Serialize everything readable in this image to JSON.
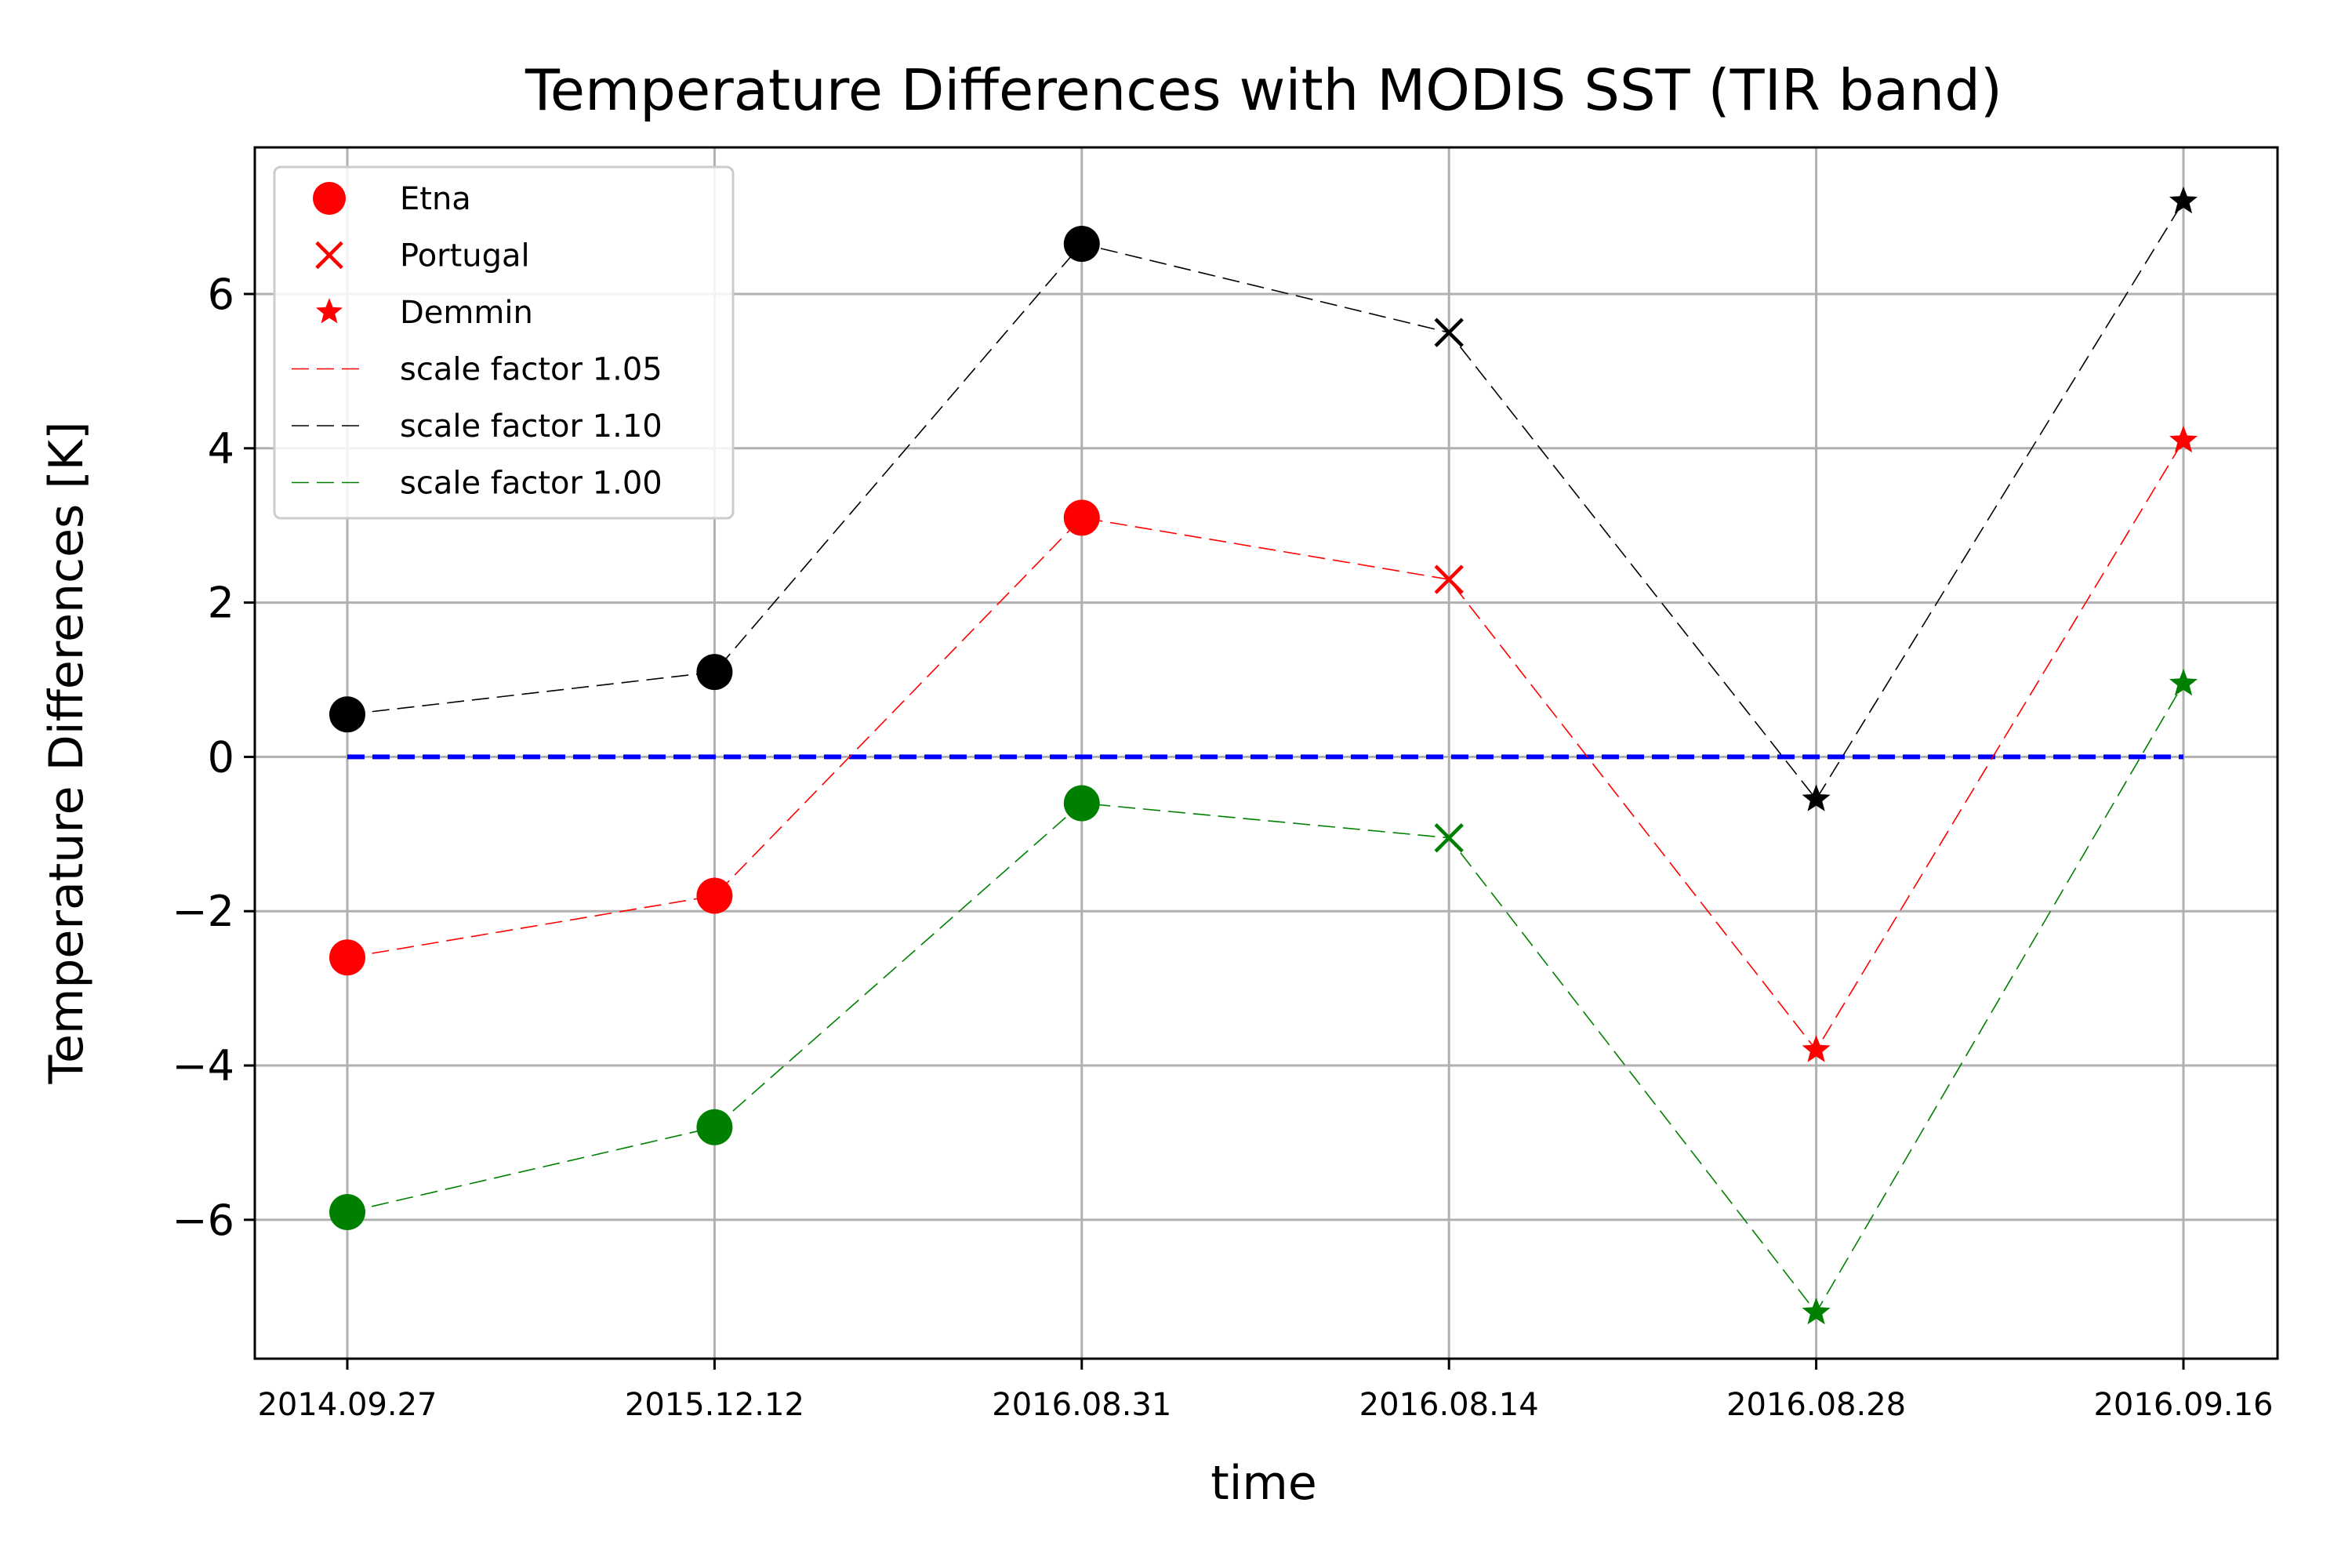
{
  "chart_data": {
    "type": "line",
    "title": "Temperature Differences with MODIS SST (TIR band)",
    "xlabel": "time",
    "ylabel": "Temperature Differences [K]",
    "categories": [
      "2014.09.27",
      "2015.12.12",
      "2016.08.31",
      "2016.08.14",
      "2016.08.28",
      "2016.09.16"
    ],
    "ylim": [
      -7.8,
      7.9
    ],
    "yticks": [
      -6,
      -4,
      -2,
      0,
      2,
      4,
      6
    ],
    "ytick_labels": [
      "−6",
      "−4",
      "−2",
      "0",
      "2",
      "4",
      "6"
    ],
    "grid": true,
    "legend_position": "top-left",
    "markers": {
      "Etna": "circle",
      "Portugal": "x",
      "Demmin": "star"
    },
    "point_sites": [
      "Etna",
      "Etna",
      "Etna",
      "Portugal",
      "Demmin",
      "Demmin"
    ],
    "series": [
      {
        "name": "scale factor 1.05",
        "color": "#ff0000",
        "values": [
          -2.6,
          -1.8,
          3.1,
          2.3,
          -3.8,
          4.1
        ]
      },
      {
        "name": "scale factor 1.10",
        "color": "#000000",
        "values": [
          0.55,
          1.1,
          6.65,
          5.5,
          -0.55,
          7.2
        ]
      },
      {
        "name": "scale factor 1.00",
        "color": "#008000",
        "values": [
          -5.9,
          -4.8,
          -0.6,
          -1.05,
          -7.2,
          0.95
        ]
      }
    ],
    "reference_line": {
      "value": 0,
      "color": "#0000ff",
      "style": "dashed"
    },
    "legend": [
      {
        "label": "Etna",
        "marker": "circle",
        "color": "#ff0000"
      },
      {
        "label": "Portugal",
        "marker": "x",
        "color": "#ff0000"
      },
      {
        "label": "Demmin",
        "marker": "star",
        "color": "#ff0000"
      },
      {
        "label": "scale factor 1.05",
        "line": "dashed",
        "color": "#ff0000"
      },
      {
        "label": "scale factor 1.10",
        "line": "dashed",
        "color": "#000000"
      },
      {
        "label": "scale factor 1.00",
        "line": "dashed",
        "color": "#008000"
      }
    ]
  }
}
